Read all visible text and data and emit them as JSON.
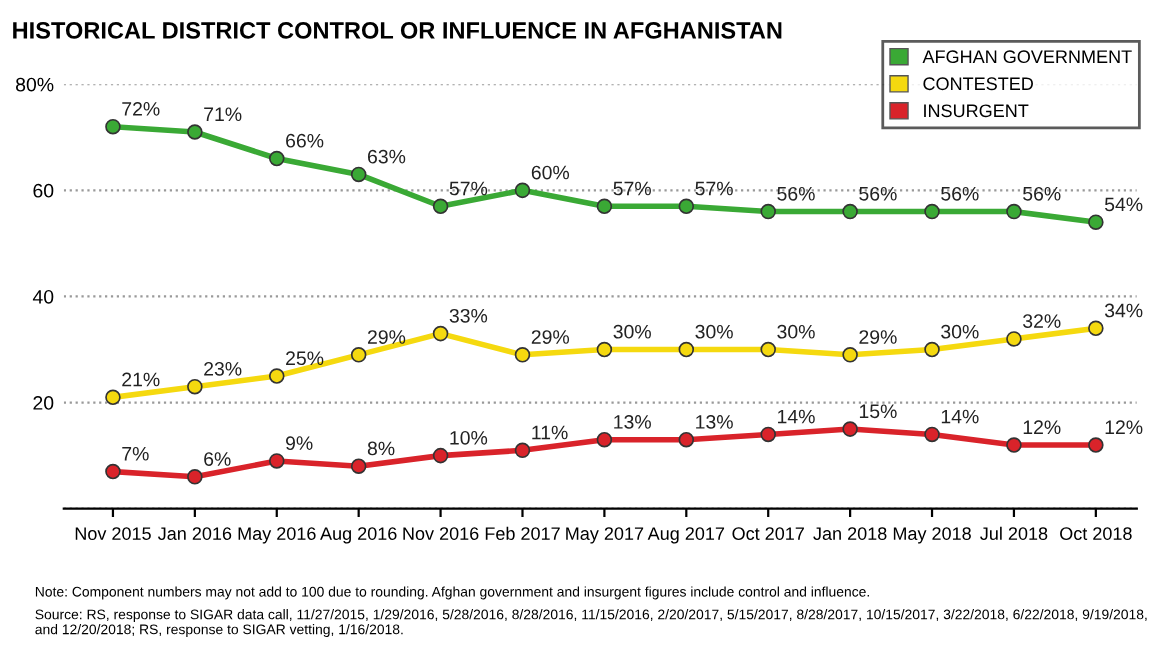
{
  "chart_data": {
    "type": "line",
    "title": "HISTORICAL DISTRICT CONTROL OR INFLUENCE IN AFGHANISTAN",
    "categories": [
      "Nov 2015",
      "Jan 2016",
      "May 2016",
      "Aug 2016",
      "Nov 2016",
      "Feb 2017",
      "May 2017",
      "Aug 2017",
      "Oct 2017",
      "Jan 2018",
      "May 2018",
      "Jul 2018",
      "Oct 2018"
    ],
    "series": [
      {
        "name": "AFGHAN GOVERNMENT",
        "color": "#3aa935",
        "values": [
          72,
          71,
          66,
          63,
          57,
          60,
          57,
          57,
          56,
          56,
          56,
          56,
          54
        ],
        "value_labels": [
          "72%",
          "71%",
          "66%",
          "63%",
          "57%",
          "60%",
          "57%",
          "57%",
          "56%",
          "56%",
          "56%",
          "56%",
          "54%"
        ]
      },
      {
        "name": "CONTESTED",
        "color": "#f5d90f",
        "values": [
          21,
          23,
          25,
          29,
          33,
          29,
          30,
          30,
          30,
          29,
          30,
          32,
          34
        ],
        "value_labels": [
          "21%",
          "23%",
          "25%",
          "29%",
          "33%",
          "29%",
          "30%",
          "30%",
          "30%",
          "29%",
          "30%",
          "32%",
          "34%"
        ]
      },
      {
        "name": "INSURGENT",
        "color": "#d9232a",
        "values": [
          7,
          6,
          9,
          8,
          10,
          11,
          13,
          13,
          14,
          15,
          14,
          12,
          12
        ],
        "value_labels": [
          "7%",
          "6%",
          "9%",
          "8%",
          "10%",
          "11%",
          "13%",
          "13%",
          "14%",
          "15%",
          "14%",
          "12%",
          "12%"
        ]
      }
    ],
    "ylim": [
      0,
      80
    ],
    "yticks": [
      {
        "value": 0,
        "label": null
      },
      {
        "value": 20,
        "label": "20"
      },
      {
        "value": 40,
        "label": "40"
      },
      {
        "value": 60,
        "label": "60"
      },
      {
        "value": 80,
        "label": "80%"
      }
    ],
    "grid": "y",
    "legend": "top right",
    "marker": "circle",
    "line_style": "solid",
    "annotations": [
      "Note: Component numbers may not add to 100 due to rounding. Afghan government and insurgent figures include control and influence.",
      "Source: RS, response to SIGAR data call, 11/27/2015, 1/29/2016, 5/28/2016, 8/28/2016, 11/15/2016, 2/20/2017, 5/15/2017, 8/28/2017, 10/15/2017, 3/22/2018, 6/22/2018, 9/19/2018, and 12/20/2018; RS, response to SIGAR vetting, 1/16/2018."
    ]
  }
}
